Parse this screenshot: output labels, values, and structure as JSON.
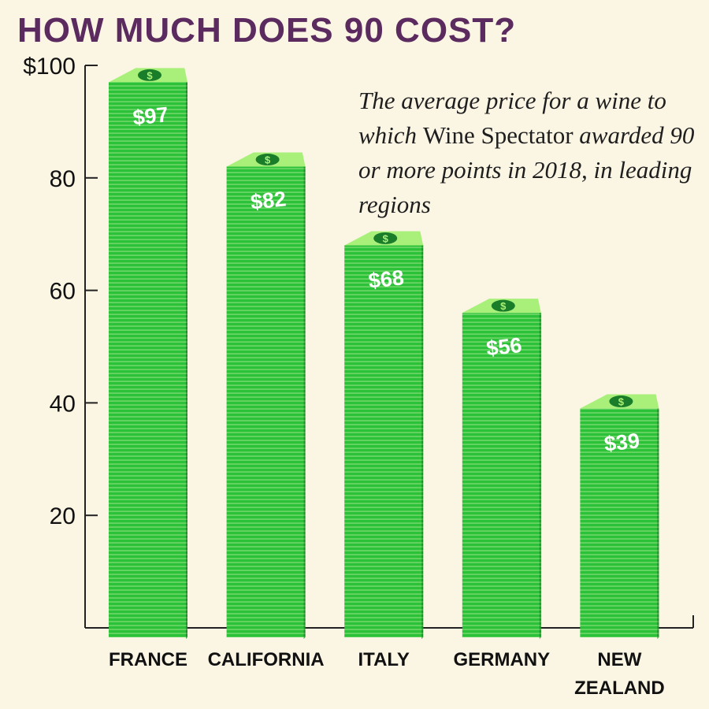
{
  "chart_data": {
    "type": "bar",
    "title": "HOW MUCH DOES 90 COST?",
    "subtitle_italic_1": "The average price for a wine to which ",
    "subtitle_roman": "Wine Spectator",
    "subtitle_italic_2": " awarded 90 or more points in 2018, in leading regions",
    "categories": [
      "FRANCE",
      "CALIFORNIA",
      "ITALY",
      "GERMANY",
      "NEW ZEALAND"
    ],
    "category_lines": [
      [
        "FRANCE"
      ],
      [
        "CALIFORNIA"
      ],
      [
        "ITALY"
      ],
      [
        "GERMANY"
      ],
      [
        "NEW",
        "ZEALAND"
      ]
    ],
    "values": [
      97,
      82,
      68,
      56,
      39
    ],
    "data_labels": [
      "$97",
      "$82",
      "$68",
      "$56",
      "$39"
    ],
    "ylim": [
      0,
      100
    ],
    "yticks": [
      20,
      40,
      60,
      80,
      100
    ],
    "ytick_labels": [
      "20",
      "40",
      "60",
      "80",
      "$100"
    ],
    "xlabel": "",
    "ylabel": "",
    "bar_icon": "dollar-coin-icon",
    "colors": {
      "title": "#5b2a5e",
      "bar_front": "#2bc23a",
      "bar_side": "#1e8f2a",
      "bar_top": "#a8f07a",
      "bar_stripe": "#a6e58c",
      "coin": "#1a7d2a",
      "axis": "#222222",
      "background": "#fbf5e4"
    }
  }
}
